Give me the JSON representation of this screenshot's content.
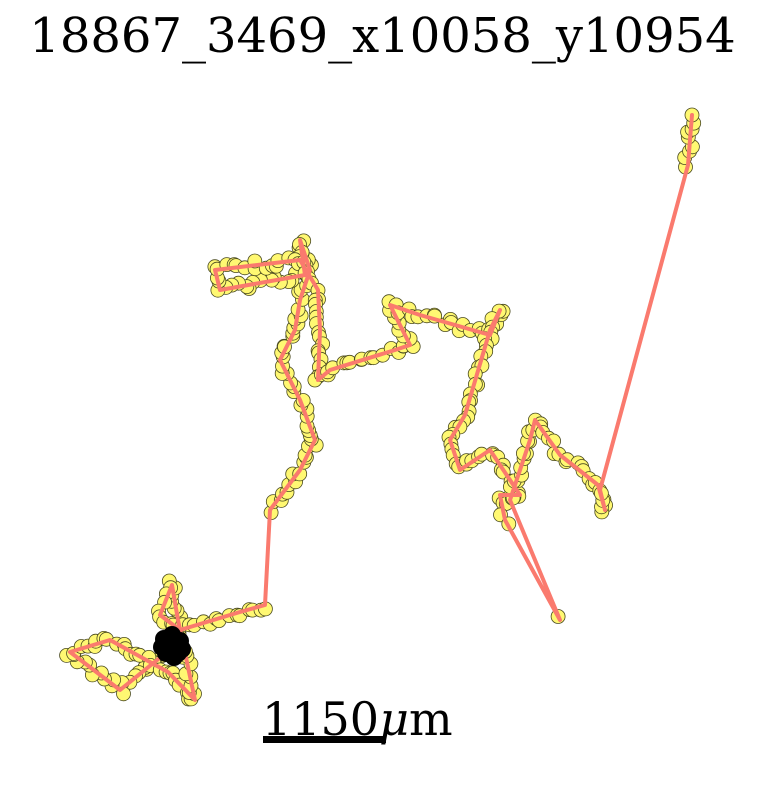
{
  "title": "18867_3469_x10058_y10954",
  "scale_bar": {
    "value": "1150",
    "unit_prefix": "μ",
    "unit": "m"
  },
  "colors": {
    "track_line": "#fa7a6e",
    "point_fill": "#fff872",
    "point_stroke": "#4a4a20",
    "start_blob": "#000000",
    "scale_bar": "#000000"
  },
  "chart_data": {
    "type": "scatter",
    "title": "18867_3469_x10058_y10954",
    "xlabel": "",
    "ylabel": "",
    "grid": false,
    "scale_bar_um": 1150,
    "track_points": [
      [
        172,
        648
      ],
      [
        120,
        690
      ],
      [
        70,
        652
      ],
      [
        110,
        640
      ],
      [
        168,
        672
      ],
      [
        195,
        700
      ],
      [
        178,
        620
      ],
      [
        172,
        585
      ],
      [
        160,
        615
      ],
      [
        180,
        630
      ],
      [
        240,
        612
      ],
      [
        265,
        605
      ],
      [
        270,
        510
      ],
      [
        300,
        470
      ],
      [
        315,
        440
      ],
      [
        300,
        400
      ],
      [
        280,
        360
      ],
      [
        295,
        330
      ],
      [
        300,
        300
      ],
      [
        310,
        270
      ],
      [
        300,
        240
      ],
      [
        305,
        275
      ],
      [
        220,
        290
      ],
      [
        215,
        270
      ],
      [
        300,
        260
      ],
      [
        318,
        290
      ],
      [
        320,
        330
      ],
      [
        318,
        380
      ],
      [
        330,
        370
      ],
      [
        395,
        350
      ],
      [
        410,
        345
      ],
      [
        390,
        305
      ],
      [
        420,
        315
      ],
      [
        490,
        335
      ],
      [
        500,
        310
      ],
      [
        490,
        330
      ],
      [
        465,
        415
      ],
      [
        450,
        440
      ],
      [
        460,
        470
      ],
      [
        490,
        450
      ],
      [
        510,
        480
      ],
      [
        520,
        495
      ],
      [
        500,
        495
      ],
      [
        505,
        520
      ],
      [
        560,
        620
      ],
      [
        510,
        500
      ],
      [
        530,
        440
      ],
      [
        535,
        420
      ],
      [
        560,
        455
      ],
      [
        598,
        485
      ],
      [
        605,
        510
      ],
      [
        600,
        490
      ],
      [
        688,
        165
      ],
      [
        692,
        115
      ]
    ],
    "start_region": [
      172,
      645
    ]
  }
}
